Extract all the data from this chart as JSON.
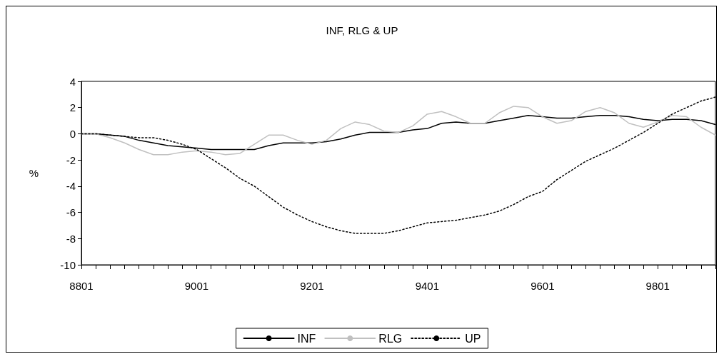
{
  "chart_data": {
    "type": "line",
    "title": "INF, RLG & UP",
    "ylabel": "%",
    "categories": [
      "8801",
      null,
      null,
      null,
      null,
      null,
      null,
      null,
      "9001",
      null,
      null,
      null,
      null,
      null,
      null,
      null,
      "9201",
      null,
      null,
      null,
      null,
      null,
      null,
      null,
      "9401",
      null,
      null,
      null,
      null,
      null,
      null,
      null,
      "9601",
      null,
      null,
      null,
      null,
      null,
      null,
      null,
      "9801",
      null,
      null,
      null,
      null
    ],
    "series": [
      {
        "name": "INF",
        "color": "#000000",
        "line_style": "solid",
        "values": [
          0,
          0,
          -0.1,
          -0.2,
          -0.5,
          -0.7,
          -0.9,
          -1.0,
          -1.1,
          -1.2,
          -1.2,
          -1.2,
          -1.2,
          -0.9,
          -0.7,
          -0.7,
          -0.7,
          -0.6,
          -0.4,
          -0.1,
          0.1,
          0.1,
          0.1,
          0.3,
          0.4,
          0.8,
          0.9,
          0.8,
          0.8,
          1.0,
          1.2,
          1.4,
          1.3,
          1.2,
          1.2,
          1.3,
          1.4,
          1.4,
          1.3,
          1.1,
          1.0,
          1.1,
          1.1,
          1.0,
          0.7
        ]
      },
      {
        "name": "RLG",
        "color": "#c0c0c0",
        "line_style": "solid",
        "values": [
          0,
          0,
          -0.3,
          -0.7,
          -1.2,
          -1.6,
          -1.6,
          -1.4,
          -1.3,
          -1.4,
          -1.6,
          -1.5,
          -0.8,
          -0.1,
          -0.1,
          -0.5,
          -0.8,
          -0.5,
          0.4,
          0.9,
          0.7,
          0.2,
          0.1,
          0.6,
          1.5,
          1.7,
          1.3,
          0.8,
          0.8,
          1.6,
          2.1,
          2.0,
          1.3,
          0.8,
          1.0,
          1.7,
          2.0,
          1.6,
          0.8,
          0.5,
          0.9,
          1.4,
          1.3,
          0.5,
          -0.1
        ]
      },
      {
        "name": "UP",
        "color": "#000000",
        "line_style": "dotted",
        "values": [
          0,
          0,
          -0.1,
          -0.2,
          -0.3,
          -0.3,
          -0.5,
          -0.8,
          -1.2,
          -1.9,
          -2.6,
          -3.4,
          -4.0,
          -4.8,
          -5.6,
          -6.2,
          -6.7,
          -7.1,
          -7.4,
          -7.6,
          -7.6,
          -7.6,
          -7.4,
          -7.1,
          -6.8,
          -6.7,
          -6.6,
          -6.4,
          -6.2,
          -5.9,
          -5.4,
          -4.8,
          -4.4,
          -3.5,
          -2.8,
          -2.1,
          -1.6,
          -1.1,
          -0.5,
          0.1,
          0.8,
          1.5,
          2.0,
          2.5,
          2.8
        ]
      }
    ],
    "ylim": [
      -10,
      4
    ],
    "yticks": [
      -10,
      -8,
      -6,
      -4,
      -2,
      0,
      2,
      4
    ],
    "grid": false,
    "legend": "bottom",
    "marker": "none"
  }
}
